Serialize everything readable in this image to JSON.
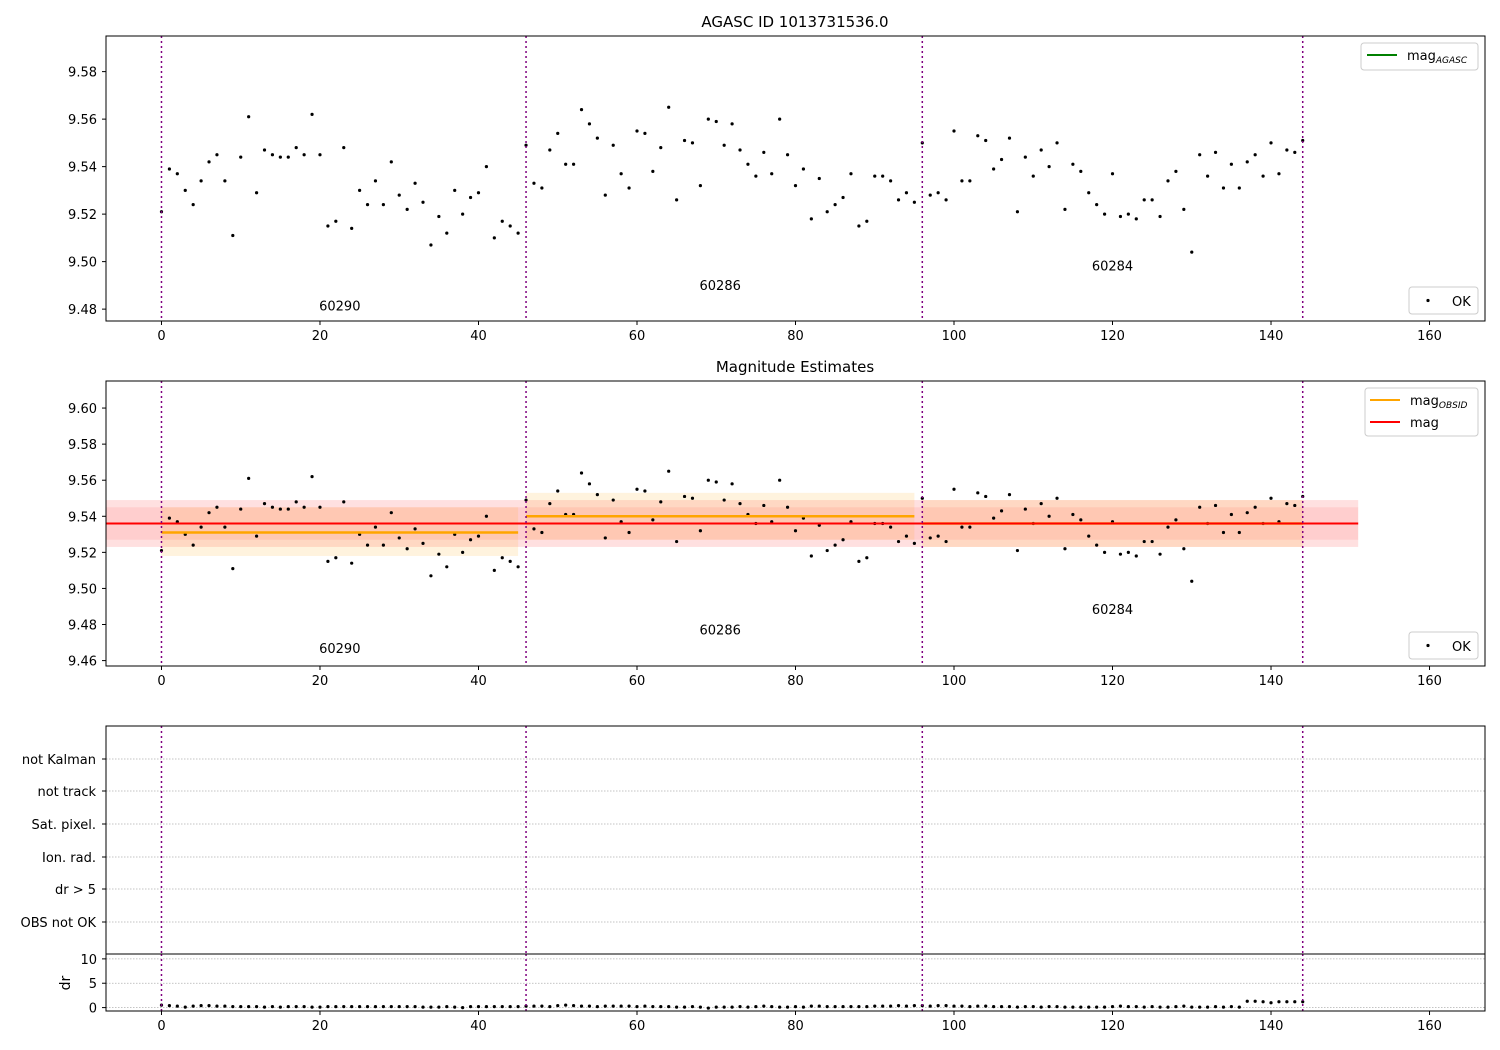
{
  "chart_data": [
    {
      "type": "scatter",
      "title": "AGASC ID 1013731536.0",
      "xlim": [
        -7,
        167
      ],
      "ylim": [
        9.475,
        9.595
      ],
      "xticks": [
        0,
        20,
        40,
        60,
        80,
        100,
        120,
        140,
        160
      ],
      "yticks": [
        9.48,
        9.5,
        9.52,
        9.54,
        9.56,
        9.58
      ],
      "ytick_labels": [
        "9.48",
        "9.50",
        "9.52",
        "9.54",
        "9.56",
        "9.58"
      ],
      "grid": false,
      "obs_boundaries": [
        0,
        46,
        96,
        144
      ],
      "obs_labels": [
        {
          "text": "60290",
          "x": 22.5,
          "y": 9.4795
        },
        {
          "text": "60286",
          "x": 70.5,
          "y": 9.488
        },
        {
          "text": "60284",
          "x": 120,
          "y": 9.4963
        }
      ],
      "legend_top": {
        "label": "mag",
        "sub": "AGASC",
        "color": "#008000",
        "placement": "top-right"
      },
      "legend_bottom": {
        "label": "OK",
        "placement": "bottom-right"
      },
      "series": [
        {
          "name": "OK",
          "color": "#000000",
          "x_start": 0,
          "y": [
            9.521,
            9.539,
            9.537,
            9.53,
            9.524,
            9.534,
            9.542,
            9.545,
            9.534,
            9.511,
            9.544,
            9.561,
            9.529,
            9.547,
            9.545,
            9.544,
            9.544,
            9.548,
            9.545,
            9.562,
            9.545,
            9.515,
            9.517,
            9.548,
            9.514,
            9.53,
            9.524,
            9.534,
            9.524,
            9.542,
            9.528,
            9.522,
            9.533,
            9.525,
            9.507,
            9.519,
            9.512,
            9.53,
            9.52,
            9.527,
            9.529,
            9.54,
            9.51,
            9.517,
            9.515,
            9.512,
            9.549,
            9.533,
            9.531,
            9.547,
            9.554,
            9.541,
            9.541,
            9.564,
            9.558,
            9.552,
            9.528,
            9.549,
            9.537,
            9.531,
            9.555,
            9.554,
            9.538,
            9.548,
            9.565,
            9.526,
            9.551,
            9.55,
            9.532,
            9.56,
            9.559,
            9.549,
            9.558,
            9.547,
            9.541,
            9.536,
            9.546,
            9.537,
            9.56,
            9.545,
            9.532,
            9.539,
            9.518,
            9.535,
            9.521,
            9.524,
            9.527,
            9.537,
            9.515,
            9.517,
            9.536,
            9.536,
            9.534,
            9.526,
            9.529,
            9.525,
            9.55,
            9.528,
            9.529,
            9.526,
            9.555,
            9.534,
            9.534,
            9.553,
            9.551,
            9.539,
            9.543,
            9.552,
            9.521,
            9.544,
            9.536,
            9.547,
            9.54,
            9.55,
            9.522,
            9.541,
            9.538,
            9.529,
            9.524,
            9.52,
            9.537,
            9.519,
            9.52,
            9.518,
            9.526,
            9.526,
            9.519,
            9.534,
            9.538,
            9.522,
            9.504,
            9.545,
            9.536,
            9.546,
            9.531,
            9.541,
            9.531,
            9.542,
            9.545,
            9.536,
            9.55,
            9.537,
            9.547,
            9.546,
            9.551
          ]
        }
      ]
    },
    {
      "type": "scatter",
      "title": "Magnitude Estimates",
      "xlim": [
        -7,
        167
      ],
      "ylim": [
        9.457,
        9.615
      ],
      "xticks": [
        0,
        20,
        40,
        60,
        80,
        100,
        120,
        140,
        160
      ],
      "yticks": [
        9.46,
        9.48,
        9.5,
        9.52,
        9.54,
        9.56,
        9.58,
        9.6
      ],
      "ytick_labels": [
        "9.46",
        "9.48",
        "9.50",
        "9.52",
        "9.54",
        "9.56",
        "9.58",
        "9.60"
      ],
      "grid": false,
      "obs_boundaries": [
        0,
        46,
        96,
        144
      ],
      "obs_labels": [
        {
          "text": "60290",
          "x": 22.5,
          "y": 9.4642
        },
        {
          "text": "60286",
          "x": 70.5,
          "y": 9.4745
        },
        {
          "text": "60284",
          "x": 120,
          "y": 9.4857
        }
      ],
      "legend_top": [
        {
          "label": "mag",
          "sub": "OBSID",
          "color": "#ffa500"
        },
        {
          "label": "mag",
          "sub": "",
          "color": "#ff0000"
        }
      ],
      "legend_bottom": {
        "label": "OK",
        "placement": "bottom-right"
      },
      "mag": {
        "value": 9.536,
        "x": [
          -7,
          151
        ],
        "band_outer": [
          9.523,
          9.549
        ],
        "band_inner": [
          9.527,
          9.545
        ],
        "color": "#ff0000"
      },
      "mag_obsid": [
        {
          "x": [
            0,
            45
          ],
          "value": 9.531,
          "band": [
            9.518,
            9.545
          ]
        },
        {
          "x": [
            46,
            95
          ],
          "value": 9.54,
          "band": [
            9.527,
            9.553
          ]
        },
        {
          "x": [
            96,
            144
          ],
          "value": 9.536,
          "band": [
            9.523,
            9.549
          ]
        }
      ]
    },
    {
      "type": "scatter",
      "title": "",
      "xlim": [
        -7,
        167
      ],
      "categories": [
        "not Kalman",
        "not track",
        "Sat. pixel.",
        "Ion. rad.",
        "dr > 5",
        "OBS not OK"
      ],
      "grid": true,
      "obs_boundaries": [
        0,
        46,
        96,
        144
      ]
    },
    {
      "type": "scatter",
      "title": "",
      "ylabel": "dr",
      "xlim": [
        -7,
        167
      ],
      "ylim": [
        -0.7,
        11
      ],
      "xticks": [
        0,
        20,
        40,
        60,
        80,
        100,
        120,
        140,
        160
      ],
      "yticks": [
        0,
        5,
        10
      ],
      "ytick_labels": [
        "0",
        "5",
        "10"
      ],
      "grid": true,
      "obs_boundaries": [
        0,
        46,
        96,
        144
      ],
      "series": [
        {
          "name": "dr",
          "color": "#000000",
          "x_start": 0,
          "y": [
            0.5,
            0.4,
            0.3,
            0.1,
            0.3,
            0.4,
            0.4,
            0.3,
            0.3,
            0.2,
            0.2,
            0.2,
            0.2,
            0.1,
            0.2,
            0.1,
            0.2,
            0.2,
            0.2,
            0.1,
            0.1,
            0.2,
            0.2,
            0.2,
            0.2,
            0.2,
            0.2,
            0.2,
            0.2,
            0.2,
            0.2,
            0.2,
            0.2,
            0.1,
            0.1,
            0.1,
            0.2,
            0.1,
            0.0,
            0.2,
            0.2,
            0.2,
            0.2,
            0.2,
            0.2,
            0.2,
            0.3,
            0.3,
            0.3,
            0.2,
            0.4,
            0.5,
            0.4,
            0.3,
            0.3,
            0.2,
            0.3,
            0.3,
            0.3,
            0.3,
            0.2,
            0.3,
            0.2,
            0.2,
            0.2,
            0.1,
            0.1,
            0.2,
            0.1,
            -0.1,
            0.1,
            0.1,
            0.1,
            0.2,
            0.1,
            0.2,
            0.3,
            0.2,
            0.1,
            0.1,
            0.2,
            0.1,
            0.3,
            0.3,
            0.2,
            0.2,
            0.2,
            0.2,
            0.2,
            0.2,
            0.3,
            0.3,
            0.3,
            0.4,
            0.3,
            0.4,
            0.4,
            0.3,
            0.4,
            0.4,
            0.3,
            0.3,
            0.2,
            0.3,
            0.3,
            0.2,
            0.2,
            0.2,
            0.1,
            0.2,
            0.2,
            0.1,
            0.2,
            0.2,
            0.1,
            0.1,
            0.1,
            0.1,
            0.1,
            0.1,
            0.2,
            0.3,
            0.2,
            0.2,
            0.1,
            0.2,
            0.1,
            0.1,
            0.2,
            0.3,
            0.1,
            0.1,
            0.1,
            0.2,
            0.1,
            0.2,
            0.1,
            1.3,
            1.3,
            1.2,
            1.0,
            1.2,
            1.2,
            1.2,
            1.2
          ]
        }
      ]
    }
  ]
}
